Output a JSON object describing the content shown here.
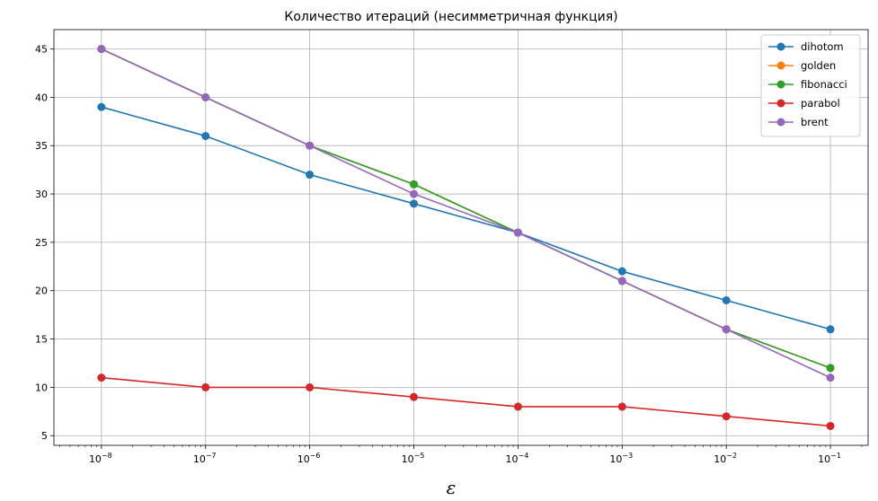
{
  "chart_data": {
    "type": "line",
    "title": "Количество итераций (несимметричная функция)",
    "xlabel": "ε",
    "ylabel": "",
    "xscale": "log",
    "x": [
      1e-08,
      1e-07,
      1e-06,
      1e-05,
      0.0001,
      0.001,
      0.01,
      0.1
    ],
    "x_tick_labels": [
      {
        "base": "10",
        "exp": "−8"
      },
      {
        "base": "10",
        "exp": "−7"
      },
      {
        "base": "10",
        "exp": "−6"
      },
      {
        "base": "10",
        "exp": "−5"
      },
      {
        "base": "10",
        "exp": "−4"
      },
      {
        "base": "10",
        "exp": "−3"
      },
      {
        "base": "10",
        "exp": "−2"
      },
      {
        "base": "10",
        "exp": "−1"
      }
    ],
    "xlim": [
      3.5e-09,
      0.23
    ],
    "yticks": [
      5,
      10,
      15,
      20,
      25,
      30,
      35,
      40,
      45
    ],
    "ylim": [
      4,
      47
    ],
    "grid": true,
    "legend_position": "top-right",
    "series": [
      {
        "name": "dihotom",
        "color": "#1f77b4",
        "values": [
          39,
          36,
          32,
          29,
          26,
          22,
          19,
          16
        ]
      },
      {
        "name": "golden",
        "color": "#ff7f0e",
        "values": [
          45,
          40,
          35,
          31,
          26,
          21,
          16,
          12
        ]
      },
      {
        "name": "fibonacci",
        "color": "#2ca02c",
        "values": [
          45,
          40,
          35,
          31,
          26,
          21,
          16,
          12
        ]
      },
      {
        "name": "parabol",
        "color": "#d62728",
        "values": [
          11,
          10,
          10,
          9,
          8,
          8,
          7,
          6
        ]
      },
      {
        "name": "brent",
        "color": "#9467bd",
        "values": [
          45,
          40,
          35,
          30,
          26,
          21,
          16,
          11
        ]
      }
    ]
  }
}
